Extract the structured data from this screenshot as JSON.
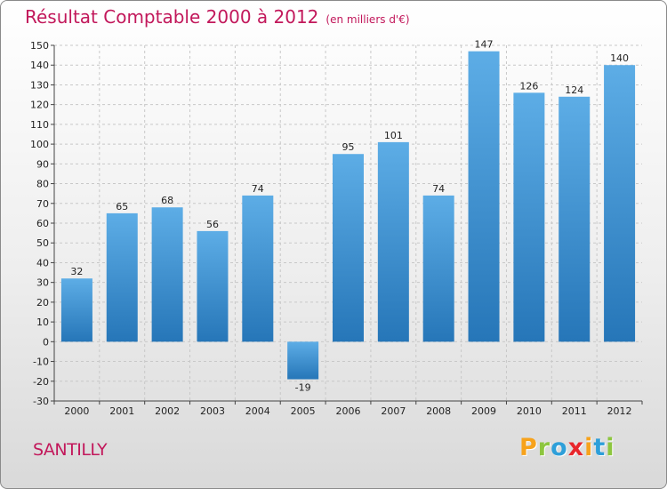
{
  "chart_data": {
    "type": "bar",
    "title": "Résultat Comptable 2000 à 2012",
    "subtitle": "(en milliers d'€)",
    "categories": [
      "2000",
      "2001",
      "2002",
      "2003",
      "2004",
      "2005",
      "2006",
      "2007",
      "2008",
      "2009",
      "2010",
      "2011",
      "2012"
    ],
    "values": [
      32,
      65,
      68,
      56,
      74,
      -19,
      95,
      101,
      74,
      147,
      126,
      124,
      140
    ],
    "ylim": [
      -30,
      150
    ],
    "yticks": [
      -30,
      -20,
      -10,
      0,
      10,
      20,
      30,
      40,
      50,
      60,
      70,
      80,
      90,
      100,
      110,
      120,
      130,
      140,
      150
    ],
    "grid": true,
    "xlabel": "",
    "ylabel": ""
  },
  "place_name": "SANTILLY",
  "logo": {
    "letters": [
      {
        "ch": "P",
        "color": "#f7a21b"
      },
      {
        "ch": "r",
        "color": "#8dc63f"
      },
      {
        "ch": "o",
        "color": "#2e9fd9"
      },
      {
        "ch": "x",
        "color": "#e8262b"
      },
      {
        "ch": "i",
        "color": "#f7a21b"
      },
      {
        "ch": "t",
        "color": "#2e9fd9"
      },
      {
        "ch": "i",
        "color": "#8dc63f"
      }
    ]
  },
  "colors": {
    "bar_light": "#5dade6",
    "bar_dark": "#2676b8",
    "title": "#c2185b"
  }
}
